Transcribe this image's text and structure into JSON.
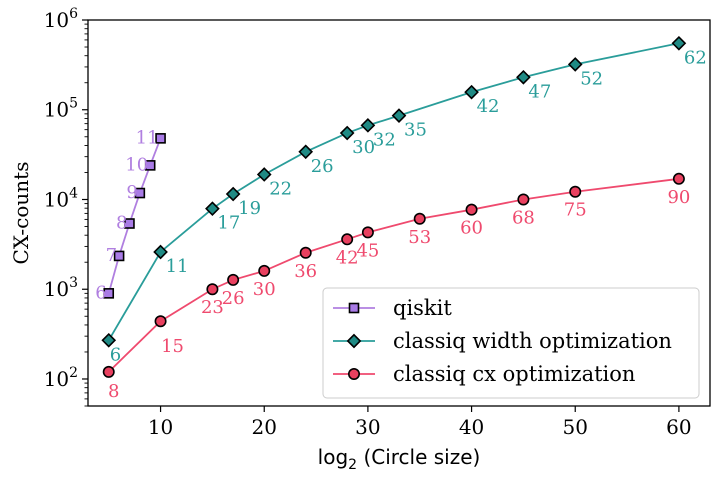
{
  "chart_data": {
    "type": "line",
    "title": "",
    "xlabel_prefix": "log",
    "xlabel_sub": "2",
    "xlabel_rest": "(Circle size)",
    "ylabel": "CX-counts",
    "yscale": "log",
    "xlim": [
      3,
      63
    ],
    "ylim": [
      50,
      1000000
    ],
    "xticks": [
      10,
      20,
      30,
      40,
      50,
      60
    ],
    "ytick_exponents": [
      2,
      3,
      4,
      5,
      6
    ],
    "ytick_base": "10",
    "legend_position": "lower right",
    "series": [
      {
        "name": "qiskit",
        "color": "#b07fe0",
        "marker_fill": "#a97be6",
        "marker": "square",
        "x": [
          5,
          6,
          7,
          8,
          9,
          10
        ],
        "y": [
          900,
          2350,
          5400,
          11800,
          24000,
          48000
        ],
        "labels": [
          "6",
          "7",
          "8",
          "9",
          "10",
          "11"
        ]
      },
      {
        "name": "classiq width optimization",
        "color": "#2a9d9a",
        "marker_fill": "#1f8a84",
        "marker": "diamond",
        "x": [
          5,
          10,
          15,
          17,
          20,
          24,
          28,
          30,
          33,
          40,
          45,
          50,
          60
        ],
        "y": [
          270,
          2600,
          7900,
          11500,
          19000,
          34000,
          55000,
          67000,
          86000,
          157000,
          230000,
          320000,
          550000
        ],
        "labels": [
          "6",
          "11",
          "17",
          "19",
          "22",
          "26",
          "30",
          "32",
          "35",
          "42",
          "47",
          "52",
          "62"
        ]
      },
      {
        "name": "classiq cx optimization",
        "color": "#ef4a6e",
        "marker_fill": "#e8405f",
        "marker": "circle",
        "x": [
          5,
          10,
          15,
          17,
          20,
          24,
          28,
          30,
          35,
          40,
          45,
          50,
          60
        ],
        "y": [
          120,
          440,
          1000,
          1270,
          1600,
          2550,
          3600,
          4300,
          6100,
          7700,
          10000,
          12200,
          17000
        ],
        "labels": [
          "8",
          "15",
          "23",
          "26",
          "30",
          "36",
          "42",
          "45",
          "53",
          "60",
          "68",
          "75",
          "90"
        ]
      }
    ]
  }
}
